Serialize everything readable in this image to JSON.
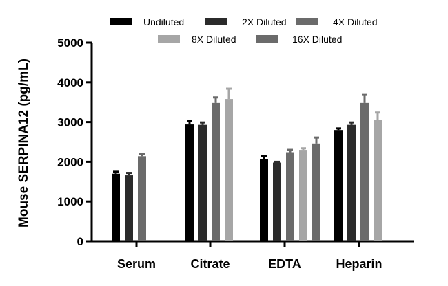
{
  "chart_data": {
    "type": "bar",
    "title": "",
    "xlabel": "",
    "ylabel": "Mouse SERPINA12 (pg/mL)",
    "ylim": [
      0,
      5000
    ],
    "yticks": [
      0,
      1000,
      2000,
      3000,
      4000,
      5000
    ],
    "ytick_labels": [
      "0",
      "1000",
      "2000",
      "3000",
      "4000",
      "5000"
    ],
    "categories": [
      "Serum",
      "Citrate",
      "EDTA",
      "Heparin"
    ],
    "grid": false,
    "legend_position": "top",
    "series": [
      {
        "name": "Undiluted",
        "color": "#000000",
        "values": [
          1700,
          2940,
          2060,
          2800
        ],
        "errors": [
          50,
          90,
          80,
          40
        ]
      },
      {
        "name": "2X Diluted",
        "color": "#2b2b2b",
        "values": [
          1660,
          2930,
          1980,
          2930
        ],
        "errors": [
          60,
          60,
          20,
          60
        ]
      },
      {
        "name": "4X Diluted",
        "color": "#6b6b6b",
        "values": [
          2140,
          3480,
          2240,
          3480
        ],
        "errors": [
          50,
          140,
          60,
          220
        ]
      },
      {
        "name": "8X Diluted",
        "color": "#a6a6a6",
        "values": [
          null,
          3580,
          2300,
          3060
        ],
        "errors": [
          null,
          260,
          40,
          180
        ]
      },
      {
        "name": "16X Diluted",
        "color": "#6b6b6b",
        "values": [
          null,
          null,
          2460,
          null
        ],
        "errors": [
          null,
          null,
          150,
          null
        ]
      }
    ]
  }
}
